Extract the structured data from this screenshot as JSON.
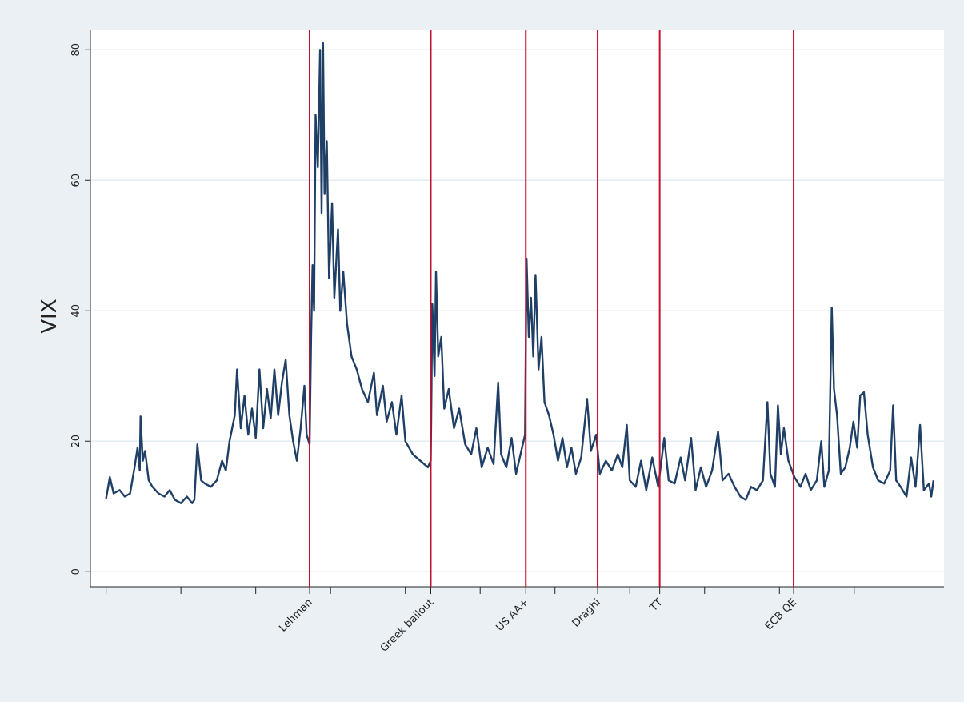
{
  "chart_data": {
    "type": "line",
    "y_label": "VIX",
    "color": "#1f3f66",
    "event_color": "#c8102e",
    "grid": true,
    "xlim": [
      -0.21,
      11.2
    ],
    "xticks": [
      0,
      1,
      2,
      3,
      4,
      5,
      6,
      7,
      8,
      9,
      10
    ],
    "ylim": [
      -2.3,
      83.1
    ],
    "yticks": [
      0,
      20,
      40,
      60,
      80
    ],
    "events": [
      {
        "label": "Lehman",
        "x": 2.72
      },
      {
        "label": "Greek bailout",
        "x": 4.34
      },
      {
        "label": "US AA+",
        "x": 5.61
      },
      {
        "label": "Draghi",
        "x": 6.57
      },
      {
        "label": "TT",
        "x": 7.4
      },
      {
        "label": "ECB QE",
        "x": 9.19
      }
    ],
    "x": [
      0.0,
      0.05,
      0.1,
      0.18,
      0.25,
      0.32,
      0.38,
      0.42,
      0.45,
      0.46,
      0.49,
      0.52,
      0.57,
      0.62,
      0.7,
      0.78,
      0.85,
      0.92,
      1.0,
      1.08,
      1.15,
      1.18,
      1.22,
      1.27,
      1.32,
      1.4,
      1.48,
      1.55,
      1.6,
      1.65,
      1.72,
      1.75,
      1.8,
      1.85,
      1.9,
      1.95,
      2.0,
      2.05,
      2.1,
      2.15,
      2.2,
      2.25,
      2.3,
      2.35,
      2.4,
      2.45,
      2.5,
      2.55,
      2.6,
      2.65,
      2.68,
      2.72,
      2.74,
      2.76,
      2.78,
      2.8,
      2.83,
      2.86,
      2.88,
      2.9,
      2.92,
      2.95,
      2.98,
      3.02,
      3.05,
      3.1,
      3.13,
      3.17,
      3.22,
      3.28,
      3.35,
      3.42,
      3.5,
      3.58,
      3.62,
      3.7,
      3.75,
      3.82,
      3.88,
      3.95,
      4.0,
      4.1,
      4.2,
      4.3,
      4.34,
      4.36,
      4.39,
      4.41,
      4.44,
      4.48,
      4.52,
      4.58,
      4.65,
      4.72,
      4.8,
      4.88,
      4.95,
      5.02,
      5.1,
      5.18,
      5.24,
      5.28,
      5.35,
      5.42,
      5.48,
      5.55,
      5.6,
      5.62,
      5.65,
      5.68,
      5.71,
      5.74,
      5.78,
      5.82,
      5.86,
      5.92,
      5.98,
      6.04,
      6.1,
      6.16,
      6.22,
      6.28,
      6.35,
      6.4,
      6.43,
      6.48,
      6.55,
      6.6,
      6.68,
      6.76,
      6.84,
      6.9,
      6.96,
      7.0,
      7.08,
      7.15,
      7.22,
      7.3,
      7.38,
      7.46,
      7.52,
      7.6,
      7.68,
      7.74,
      7.82,
      7.88,
      7.95,
      8.02,
      8.1,
      8.18,
      8.24,
      8.32,
      8.4,
      8.48,
      8.55,
      8.62,
      8.7,
      8.78,
      8.84,
      8.88,
      8.94,
      8.98,
      9.02,
      9.06,
      9.12,
      9.2,
      9.28,
      9.35,
      9.42,
      9.5,
      9.56,
      9.6,
      9.66,
      9.7,
      9.73,
      9.77,
      9.82,
      9.88,
      9.94,
      9.99,
      10.04,
      10.08,
      10.13,
      10.18,
      10.25,
      10.32,
      10.4,
      10.48,
      10.52,
      10.56,
      10.62,
      10.7,
      10.76,
      10.82,
      10.88,
      10.93,
      11.0,
      11.03,
      11.06
    ],
    "values": [
      11.2,
      14.5,
      12.0,
      12.5,
      11.5,
      12.0,
      16.0,
      19.0,
      15.5,
      23.8,
      17.0,
      18.5,
      14.0,
      13.0,
      12.0,
      11.5,
      12.5,
      11.0,
      10.5,
      11.5,
      10.5,
      11.0,
      19.5,
      14.0,
      13.5,
      13.0,
      14.0,
      17.0,
      15.5,
      20.0,
      24.0,
      31.0,
      22.0,
      27.0,
      21.0,
      25.0,
      20.5,
      31.0,
      22.0,
      28.0,
      23.5,
      31.0,
      24.0,
      29.0,
      32.5,
      24.0,
      20.0,
      17.0,
      22.0,
      28.5,
      21.0,
      19.5,
      36.0,
      47.0,
      40.0,
      70.0,
      62.0,
      80.0,
      55.0,
      81.0,
      58.0,
      66.0,
      45.0,
      56.5,
      42.0,
      52.5,
      40.0,
      46.0,
      38.0,
      33.0,
      31.0,
      28.0,
      26.0,
      30.5,
      24.0,
      28.5,
      23.0,
      26.0,
      21.0,
      27.0,
      20.0,
      18.0,
      17.0,
      16.0,
      17.0,
      41.0,
      30.0,
      46.0,
      33.0,
      36.0,
      25.0,
      28.0,
      22.0,
      25.0,
      19.5,
      18.0,
      22.0,
      16.0,
      19.0,
      16.5,
      29.0,
      18.0,
      16.0,
      20.5,
      15.0,
      18.5,
      21.0,
      48.0,
      36.0,
      42.0,
      33.0,
      45.5,
      31.0,
      36.0,
      26.0,
      24.0,
      21.0,
      17.0,
      20.5,
      16.0,
      19.0,
      15.0,
      17.5,
      23.0,
      26.5,
      18.5,
      21.0,
      15.0,
      17.0,
      15.5,
      18.0,
      16.0,
      22.5,
      14.0,
      13.0,
      17.0,
      12.5,
      17.5,
      13.0,
      20.5,
      14.0,
      13.5,
      17.5,
      14.0,
      20.5,
      12.5,
      16.0,
      13.0,
      15.5,
      21.5,
      14.0,
      15.0,
      13.0,
      11.5,
      11.0,
      13.0,
      12.5,
      14.0,
      26.0,
      15.0,
      13.0,
      25.5,
      18.0,
      22.0,
      17.0,
      14.5,
      13.0,
      15.0,
      12.5,
      14.0,
      20.0,
      13.0,
      15.5,
      40.5,
      28.0,
      24.0,
      15.0,
      16.0,
      19.0,
      23.0,
      19.0,
      27.0,
      27.5,
      21.0,
      16.0,
      14.0,
      13.5,
      15.5,
      25.5,
      14.0,
      13.0,
      11.5,
      17.5,
      13.0,
      22.5,
      12.5,
      13.5,
      11.5,
      14.0
    ]
  }
}
